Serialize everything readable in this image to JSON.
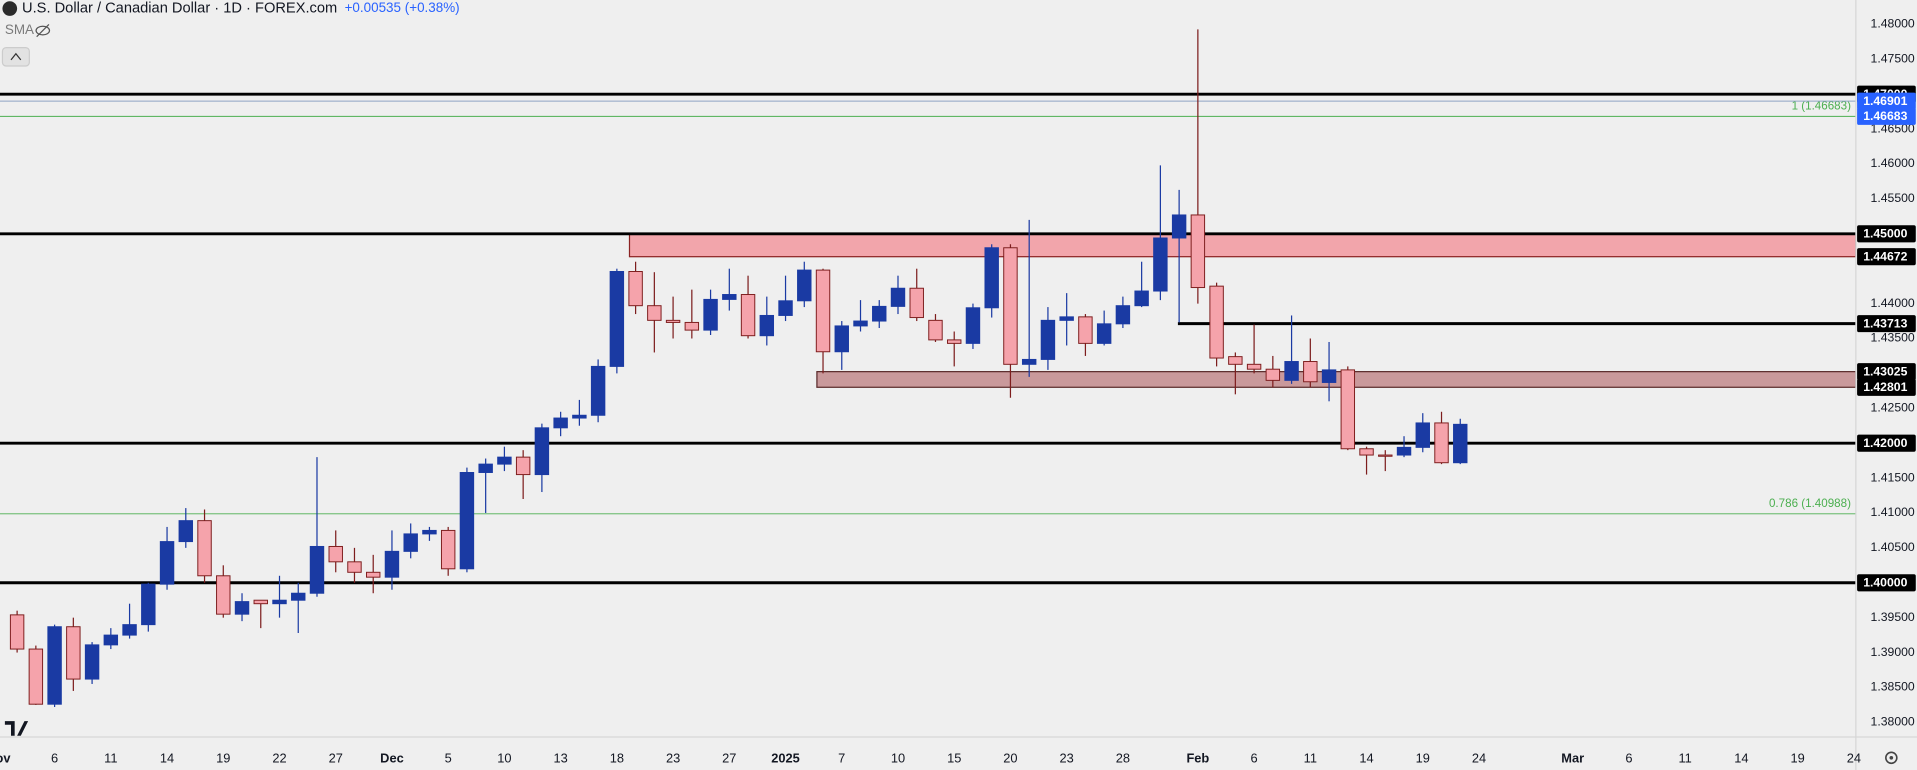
{
  "header": {
    "title": "U.S. Dollar / Canadian Dollar · 1D · FOREX.com",
    "change": "+0.00535 (+0.38%)",
    "indicator": "SMA"
  },
  "chart_data": {
    "type": "candlestick",
    "up_color": "#1a3aa3",
    "down_color": "#f5a3ab",
    "down_border": "#7d1d1d",
    "opens": [
      1.3954,
      1.3905,
      1.3826,
      1.3937,
      1.3862,
      1.3911,
      1.3925,
      1.394,
      1.3998,
      1.4059,
      1.4089,
      1.401,
      1.3955,
      1.3975,
      1.397,
      1.3975,
      1.3985,
      1.4052,
      1.403,
      1.4015,
      1.4008,
      1.4045,
      1.407,
      1.4075,
      1.402,
      1.4158,
      1.417,
      1.418,
      1.4155,
      1.4222,
      1.4236,
      1.424,
      1.431,
      1.4446,
      1.4397,
      1.4376,
      1.4373,
      1.4362,
      1.4406,
      1.4413,
      1.4354,
      1.4383,
      1.4404,
      1.4448,
      1.4331,
      1.4368,
      1.4375,
      1.4396,
      1.4422,
      1.4376,
      1.4348,
      1.4343,
      1.4394,
      1.448,
      1.4313,
      1.432,
      1.4376,
      1.4381,
      1.4343,
      1.4371,
      1.4397,
      1.4418,
      1.4494,
      1.4527,
      1.4425,
      1.4324,
      1.4313,
      1.4306,
      1.429,
      1.4317,
      1.4287,
      1.4305,
      1.4192,
      1.4183,
      1.4183,
      1.4194,
      1.4229,
      1.4172
    ],
    "highs": [
      1.396,
      1.391,
      1.394,
      1.395,
      1.3915,
      1.3935,
      1.397,
      1.4,
      1.408,
      1.4107,
      1.4105,
      1.4025,
      1.3985,
      1.3975,
      1.401,
      1.4,
      1.418,
      1.4075,
      1.405,
      1.404,
      1.4075,
      1.4085,
      1.408,
      1.408,
      1.4165,
      1.4178,
      1.4195,
      1.419,
      1.4228,
      1.4245,
      1.4262,
      1.432,
      1.445,
      1.446,
      1.4445,
      1.441,
      1.442,
      1.442,
      1.445,
      1.444,
      1.441,
      1.444,
      1.446,
      1.445,
      1.4375,
      1.4405,
      1.4405,
      1.444,
      1.445,
      1.4385,
      1.436,
      1.44,
      1.4485,
      1.4485,
      1.452,
      1.4395,
      1.4415,
      1.4385,
      1.439,
      1.441,
      1.446,
      1.4598,
      1.4563,
      1.4793,
      1.443,
      1.433,
      1.437,
      1.4325,
      1.4383,
      1.435,
      1.4345,
      1.431,
      1.4195,
      1.419,
      1.421,
      1.4243,
      1.4245,
      1.4235
    ],
    "lows": [
      1.39,
      1.3825,
      1.3822,
      1.3845,
      1.3855,
      1.3905,
      1.392,
      1.393,
      1.399,
      1.405,
      1.4,
      1.395,
      1.3945,
      1.3935,
      1.395,
      1.3928,
      1.398,
      1.4015,
      1.4,
      1.3985,
      1.399,
      1.4035,
      1.406,
      1.401,
      1.4015,
      1.41,
      1.416,
      1.412,
      1.413,
      1.421,
      1.4225,
      1.423,
      1.43,
      1.4385,
      1.433,
      1.435,
      1.435,
      1.4355,
      1.439,
      1.435,
      1.434,
      1.4375,
      1.4395,
      1.43,
      1.4305,
      1.436,
      1.4365,
      1.4385,
      1.4375,
      1.4345,
      1.431,
      1.4335,
      1.438,
      1.4265,
      1.4295,
      1.4305,
      1.434,
      1.4325,
      1.434,
      1.4365,
      1.4395,
      1.4405,
      1.4373,
      1.44,
      1.431,
      1.427,
      1.43,
      1.428,
      1.4285,
      1.428,
      1.426,
      1.419,
      1.4155,
      1.416,
      1.418,
      1.4187,
      1.417,
      1.417
    ],
    "closes": [
      1.3905,
      1.3826,
      1.3937,
      1.3862,
      1.3911,
      1.3925,
      1.394,
      1.3998,
      1.4059,
      1.4089,
      1.401,
      1.3955,
      1.3973,
      1.397,
      1.3975,
      1.3985,
      1.4052,
      1.403,
      1.4015,
      1.4008,
      1.4045,
      1.407,
      1.4075,
      1.402,
      1.4158,
      1.417,
      1.418,
      1.4155,
      1.4222,
      1.4236,
      1.424,
      1.431,
      1.4446,
      1.4397,
      1.4376,
      1.4373,
      1.4362,
      1.4406,
      1.4413,
      1.4354,
      1.4383,
      1.4404,
      1.4448,
      1.4331,
      1.4368,
      1.4375,
      1.4396,
      1.4422,
      1.438,
      1.4348,
      1.4343,
      1.4394,
      1.448,
      1.4313,
      1.432,
      1.4376,
      1.4381,
      1.4343,
      1.4371,
      1.4397,
      1.4418,
      1.4494,
      1.4527,
      1.4423,
      1.4322,
      1.4313,
      1.4306,
      1.429,
      1.4317,
      1.4288,
      1.4305,
      1.4192,
      1.4183,
      1.4182,
      1.4194,
      1.4229,
      1.4172,
      1.4227
    ],
    "xticks": [
      {
        "value": -1,
        "label": "Nov"
      },
      {
        "value": 2,
        "label": "6"
      },
      {
        "value": 5,
        "label": "11"
      },
      {
        "value": 8,
        "label": "14"
      },
      {
        "value": 11,
        "label": "19"
      },
      {
        "value": 14,
        "label": "22"
      },
      {
        "value": 17,
        "label": "27"
      },
      {
        "value": 20,
        "label": "Dec"
      },
      {
        "value": 23,
        "label": "5"
      },
      {
        "value": 26,
        "label": "10"
      },
      {
        "value": 29,
        "label": "13"
      },
      {
        "value": 32,
        "label": "18"
      },
      {
        "value": 35,
        "label": "23"
      },
      {
        "value": 38,
        "label": "27"
      },
      {
        "value": 41,
        "label": "2025"
      },
      {
        "value": 44,
        "label": "7"
      },
      {
        "value": 47,
        "label": "10"
      },
      {
        "value": 50,
        "label": "15"
      },
      {
        "value": 53,
        "label": "20"
      },
      {
        "value": 56,
        "label": "23"
      },
      {
        "value": 59,
        "label": "28"
      },
      {
        "value": 63,
        "label": "Feb"
      },
      {
        "value": 66,
        "label": "6"
      },
      {
        "value": 69,
        "label": "11"
      },
      {
        "value": 72,
        "label": "14"
      },
      {
        "value": 75,
        "label": "19"
      },
      {
        "value": 78,
        "label": "24"
      },
      {
        "value": 83,
        "label": "Mar"
      },
      {
        "value": 86,
        "label": "6"
      },
      {
        "value": 89,
        "label": "11"
      },
      {
        "value": 92,
        "label": "14"
      },
      {
        "value": 95,
        "label": "19"
      },
      {
        "value": 98,
        "label": "24"
      }
    ],
    "ylim": [
      1.3779,
      1.4835
    ],
    "yticks": [
      {
        "value": 1.38,
        "label": "1.38000"
      },
      {
        "value": 1.385,
        "label": "1.38500"
      },
      {
        "value": 1.39,
        "label": "1.39000"
      },
      {
        "value": 1.395,
        "label": "1.39500"
      },
      {
        "value": 1.405,
        "label": "1.40500"
      },
      {
        "value": 1.41,
        "label": "1.41000"
      },
      {
        "value": 1.415,
        "label": "1.41500"
      },
      {
        "value": 1.425,
        "label": "1.42500"
      },
      {
        "value": 1.435,
        "label": "1.43500"
      },
      {
        "value": 1.44,
        "label": "1.44000"
      },
      {
        "value": 1.455,
        "label": "1.45500"
      },
      {
        "value": 1.46,
        "label": "1.46000"
      },
      {
        "value": 1.465,
        "label": "1.46500"
      },
      {
        "value": 1.475,
        "label": "1.47500"
      },
      {
        "value": 1.48,
        "label": "1.48000"
      }
    ],
    "levels": [
      {
        "value": 1.47,
        "label": "1.47000",
        "color": "#000000",
        "line": "thick",
        "start": null
      },
      {
        "value": 1.46901,
        "label": "1.46901",
        "color": "#2962ff",
        "line": "thin",
        "start": null
      },
      {
        "value": 1.46683,
        "label": "1.46683",
        "color": "#2962ff",
        "line": "none",
        "start": null
      },
      {
        "value": 1.45,
        "label": "1.45000",
        "color": "#000000",
        "line": "thick",
        "start": null
      },
      {
        "value": 1.44672,
        "label": "1.44672",
        "color": "#000000",
        "line": "none",
        "start": null
      },
      {
        "value": 1.43713,
        "label": "1.43713",
        "color": "#000000",
        "line": "thick",
        "start": 62
      },
      {
        "value": 1.43025,
        "label": "1.43025",
        "color": "#000000",
        "line": "none",
        "start": null
      },
      {
        "value": 1.42801,
        "label": "1.42801",
        "color": "#000000",
        "line": "none",
        "start": null
      },
      {
        "value": 1.42,
        "label": "1.42000",
        "color": "#000000",
        "line": "thick",
        "start": null
      },
      {
        "value": 1.4,
        "label": "1.40000",
        "color": "#000000",
        "line": "thick",
        "start": null
      }
    ],
    "zones": [
      {
        "top": 1.45,
        "bottom": 1.44672,
        "start": 33,
        "color": "#f2a5ab",
        "border": "#8b2323"
      },
      {
        "top": 1.43025,
        "bottom": 1.42801,
        "start": 43,
        "color": "#c9999b",
        "border": "#5a2a2a"
      }
    ],
    "fib": [
      {
        "value": 1.46683,
        "label": "1 (1.46683)"
      },
      {
        "value": 1.40988,
        "label": "0.786 (1.40988)"
      }
    ],
    "fib_color": "#4caf50"
  }
}
